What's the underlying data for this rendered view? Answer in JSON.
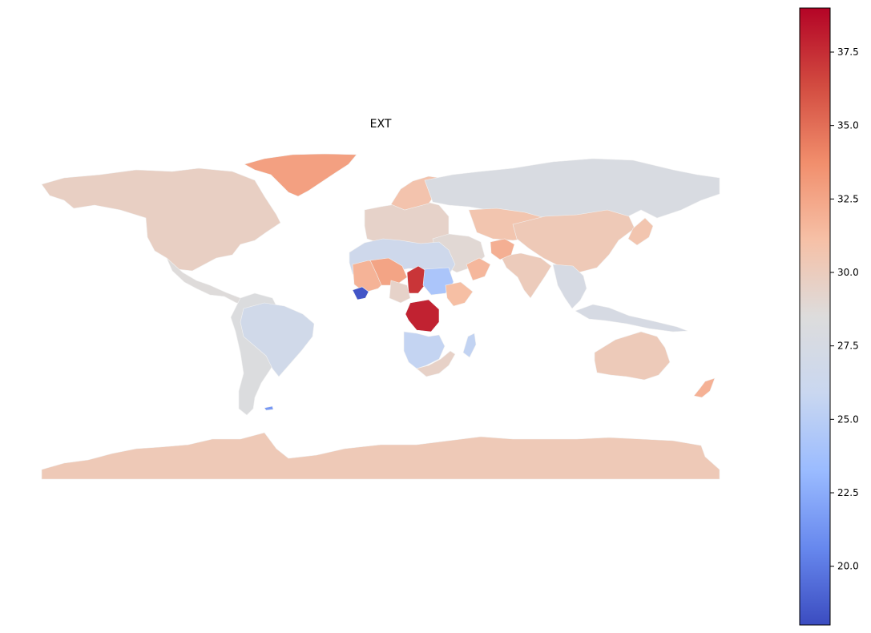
{
  "map": {
    "title": "EXT",
    "colormap": "coolwarm",
    "ocean_color": "#ffffff",
    "border_color": "#f2f2f2",
    "projection": "plate carree (lon/lat)"
  },
  "colorbar": {
    "min": 18.0,
    "max": 39.0,
    "ticks": [
      "20.0",
      "22.5",
      "25.0",
      "27.5",
      "30.0",
      "32.5",
      "35.0",
      "37.5"
    ],
    "tick_values": [
      20.0,
      22.5,
      25.0,
      27.5,
      30.0,
      32.5,
      35.0,
      37.5
    ],
    "gradient_stops": [
      "#3b4cc0",
      "#6788ee",
      "#9abbff",
      "#c9d7f0",
      "#dddcdc",
      "#f6c0a6",
      "#f18e6c",
      "#d24b40",
      "#b40426"
    ]
  },
  "regions": [
    {
      "name": "North America",
      "value": 29.7
    },
    {
      "name": "Central America",
      "value": 28.6
    },
    {
      "name": "Greenland",
      "value": 32.8
    },
    {
      "name": "South America",
      "value": 28.3
    },
    {
      "name": "Brazil",
      "value": 26.8
    },
    {
      "name": "Europe",
      "value": 29.4
    },
    {
      "name": "Scandinavia",
      "value": 30.8
    },
    {
      "name": "Russia",
      "value": 27.9
    },
    {
      "name": "Central Asia",
      "value": 30.7
    },
    {
      "name": "China",
      "value": 30.3
    },
    {
      "name": "India",
      "value": 30.1
    },
    {
      "name": "Southeast Asia",
      "value": 27.6
    },
    {
      "name": "Indonesia",
      "value": 27.6
    },
    {
      "name": "Middle East",
      "value": 28.9
    },
    {
      "name": "Oman",
      "value": 31.6
    },
    {
      "name": "Afghanistan",
      "value": 32.0
    },
    {
      "name": "Japan",
      "value": 30.7
    },
    {
      "name": "North Africa",
      "value": 26.5
    },
    {
      "name": "Mali",
      "value": 31.8
    },
    {
      "name": "Niger",
      "value": 32.6
    },
    {
      "name": "Guinea",
      "value": 18.4
    },
    {
      "name": "Chad",
      "value": 37.2
    },
    {
      "name": "Sudan",
      "value": 24.2
    },
    {
      "name": "Ethiopia",
      "value": 31.2
    },
    {
      "name": "Central African Republic",
      "value": 29.4
    },
    {
      "name": "DR Congo",
      "value": 37.9
    },
    {
      "name": "Angola",
      "value": 25.6
    },
    {
      "name": "Southern Africa",
      "value": 29.5
    },
    {
      "name": "Madagascar",
      "value": 25.5
    },
    {
      "name": "Australia",
      "value": 30.2
    },
    {
      "name": "New Zealand",
      "value": 31.9
    },
    {
      "name": "Antarctica",
      "value": 30.3
    },
    {
      "name": "Falkland Islands",
      "value": 21.5
    }
  ]
}
